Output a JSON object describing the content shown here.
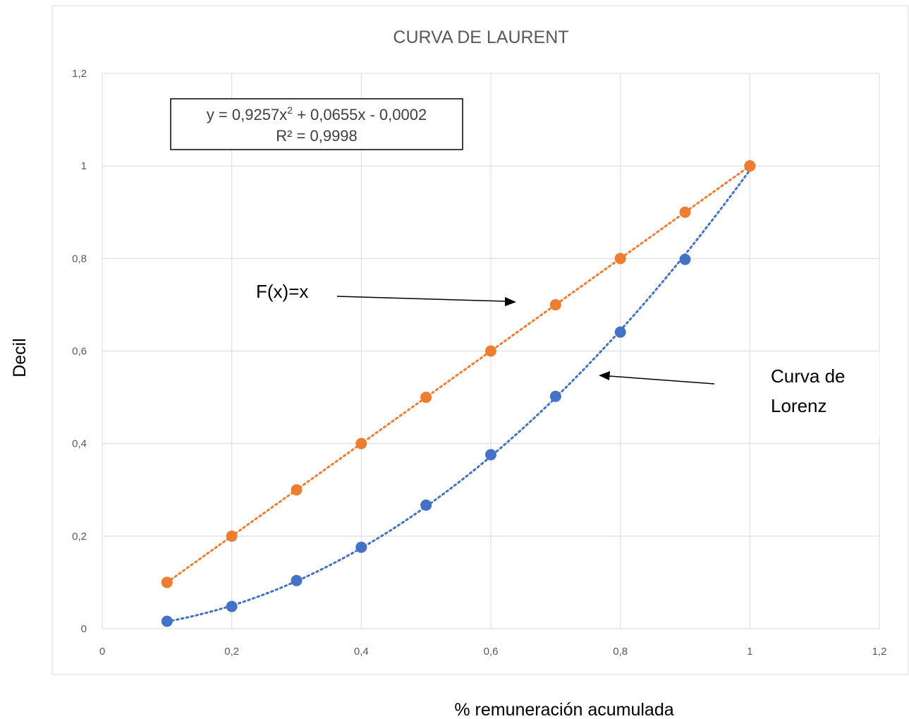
{
  "chart_data": {
    "type": "scatter",
    "title": "CURVA DE LAURENT",
    "xlabel": "% remuneración acumulada",
    "ylabel": "Decil",
    "xlim": [
      0,
      1.2
    ],
    "ylim": [
      0,
      1.2
    ],
    "x_ticks": [
      "0",
      "0,2",
      "0,4",
      "0,6",
      "0,8",
      "1",
      "1,2"
    ],
    "y_ticks": [
      "0",
      "0,2",
      "0,4",
      "0,6",
      "0,8",
      "1",
      "1,2"
    ],
    "grid": true,
    "series": [
      {
        "color": "#4472C4",
        "trendline": "polynomial-2",
        "points": [
          {
            "x": 0.1,
            "y": 0.016
          },
          {
            "x": 0.2,
            "y": 0.048
          },
          {
            "x": 0.3,
            "y": 0.104
          },
          {
            "x": 0.4,
            "y": 0.176
          },
          {
            "x": 0.5,
            "y": 0.267
          },
          {
            "x": 0.6,
            "y": 0.376
          },
          {
            "x": 0.7,
            "y": 0.502
          },
          {
            "x": 0.8,
            "y": 0.641
          },
          {
            "x": 0.9,
            "y": 0.798
          },
          {
            "x": 1.0,
            "y": 1.0
          }
        ]
      },
      {
        "color": "#ED7D31",
        "trendline": "linear",
        "points": [
          {
            "x": 0.1,
            "y": 0.1
          },
          {
            "x": 0.2,
            "y": 0.2
          },
          {
            "x": 0.3,
            "y": 0.3
          },
          {
            "x": 0.4,
            "y": 0.4
          },
          {
            "x": 0.5,
            "y": 0.5
          },
          {
            "x": 0.6,
            "y": 0.6
          },
          {
            "x": 0.7,
            "y": 0.7
          },
          {
            "x": 0.8,
            "y": 0.8
          },
          {
            "x": 0.9,
            "y": 0.9
          },
          {
            "x": 1.0,
            "y": 1.0
          }
        ]
      }
    ],
    "trendline_equation": {
      "line1_a": "y = 0,9257x",
      "line1_sup": "2",
      "line1_b": " + 0,0655x - 0,0002",
      "line2": "R² = 0,9998"
    },
    "annotations": {
      "fx": "F(x)=x",
      "lorenz_line1": "Curva de",
      "lorenz_line2": "Lorenz"
    }
  }
}
